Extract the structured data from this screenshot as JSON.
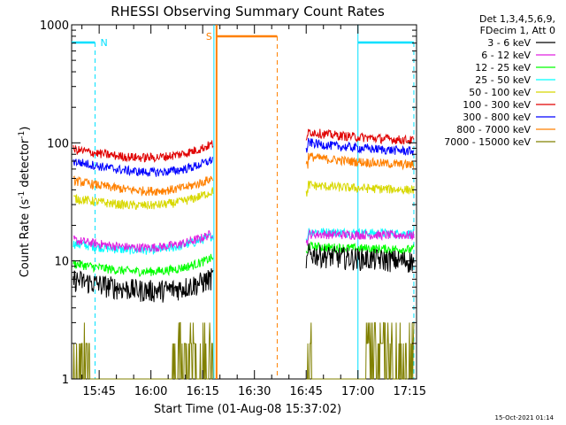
{
  "chart_data": {
    "type": "line",
    "title": "RHESSI Observing Summary Count Rates",
    "xlabel": "Start Time (01-Aug-08 15:37:02)",
    "ylabel_main": "Count Rate (s",
    "ylabel_sup1": "-1",
    "ylabel_mid": " detector",
    "ylabel_sup2": "-1",
    "ylabel_end": ")",
    "y_scale": "log",
    "ylim": [
      1,
      1000
    ],
    "xlim_minutes": [
      15.617,
      17.283
    ],
    "x_ticks": [
      {
        "label": "15:45",
        "value": 15.75
      },
      {
        "label": "16:00",
        "value": 16.0
      },
      {
        "label": "16:15",
        "value": 16.25
      },
      {
        "label": "16:30",
        "value": 16.5
      },
      {
        "label": "16:45",
        "value": 16.75
      },
      {
        "label": "17:00",
        "value": 17.0
      },
      {
        "label": "17:15",
        "value": 17.25
      }
    ],
    "y_ticks": [
      {
        "label": "1",
        "value": 1
      },
      {
        "label": "10",
        "value": 10
      },
      {
        "label": "100",
        "value": 100
      },
      {
        "label": "1000",
        "value": 1000
      }
    ],
    "legend_header": [
      "Det 1,3,4,5,6,9,",
      "FDecim 1, Att 0"
    ],
    "legend_position": "top-right",
    "series": [
      {
        "name": "3 - 6 keV",
        "color": "#000000",
        "seg1": [
          7.0,
          6.0
        ],
        "seg2": [
          12.0,
          10.0
        ]
      },
      {
        "name": "6 - 12 keV",
        "color": "#e020e0",
        "seg1": [
          15.0,
          14.5
        ],
        "seg2": [
          17.0,
          16.5
        ]
      },
      {
        "name": "12 - 25 keV",
        "color": "#00ff00",
        "seg1": [
          9.5,
          9.0
        ],
        "seg2": [
          13.5,
          12.5
        ]
      },
      {
        "name": "25 - 50 keV",
        "color": "#00ffff",
        "seg1": [
          14.0,
          14.0
        ],
        "seg2": [
          18.0,
          17.0
        ]
      },
      {
        "name": "50 - 100 keV",
        "color": "#d8d800",
        "seg1": [
          34.0,
          33.0
        ],
        "seg2": [
          45.0,
          40.0
        ]
      },
      {
        "name": "100 - 300 keV",
        "color": "#e00000",
        "seg1": [
          88.0,
          83.0
        ],
        "seg2": [
          130.0,
          105.0
        ]
      },
      {
        "name": "300 - 800 keV",
        "color": "#0000ff",
        "seg1": [
          70.0,
          60.0
        ],
        "seg2": [
          105.0,
          85.0
        ]
      },
      {
        "name": "800 - 7000 keV",
        "color": "#ff8000",
        "seg1": [
          48.0,
          42.0
        ],
        "seg2": [
          80.0,
          65.0
        ]
      },
      {
        "name": "7000 - 15000 keV",
        "color": "#808000",
        "seg1": [
          1.0,
          1.0
        ],
        "seg2": [
          1.0,
          1.0
        ]
      }
    ],
    "data_segments_hours": [
      [
        15.625,
        16.3
      ],
      [
        16.75,
        17.27
      ]
    ],
    "annotations": [
      {
        "label": "N",
        "type": "night",
        "color": "#00e0ff",
        "ranges": [
          [
            15.617,
            15.73
          ],
          [
            17.0,
            17.27
          ]
        ]
      },
      {
        "label": "S",
        "type": "saa",
        "color": "#ff8000",
        "ranges": [
          [
            16.317,
            16.61
          ]
        ]
      }
    ],
    "night_label": "N",
    "saa_label": "S"
  },
  "footer": {
    "timestamp": "15-Oct-2021 01:14"
  }
}
